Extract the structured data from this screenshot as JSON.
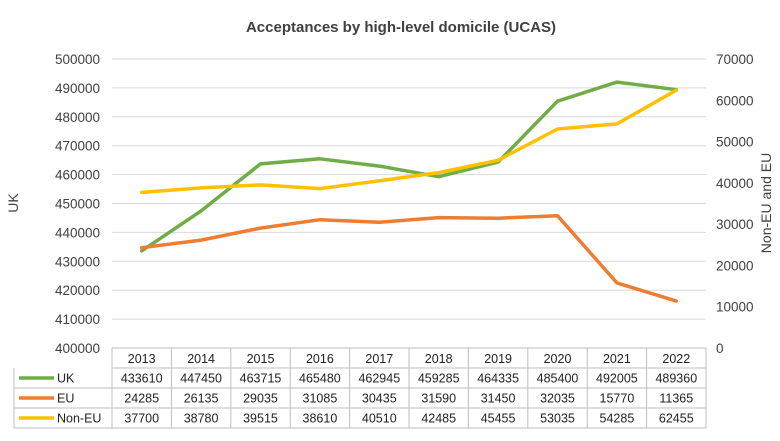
{
  "chart_data": {
    "type": "line",
    "title": "Acceptances by high-level domicile (UCAS)",
    "categories": [
      "2013",
      "2014",
      "2015",
      "2016",
      "2017",
      "2018",
      "2019",
      "2020",
      "2021",
      "2022"
    ],
    "series": [
      {
        "name": "UK",
        "axis": "left",
        "color": "#70ad47",
        "values": [
          433610,
          447450,
          463715,
          465480,
          462945,
          459285,
          464335,
          485400,
          492005,
          489360
        ]
      },
      {
        "name": "EU",
        "axis": "right",
        "color": "#ed7d31",
        "values": [
          24285,
          26135,
          29035,
          31085,
          30435,
          31590,
          31450,
          32035,
          15770,
          11365
        ]
      },
      {
        "name": "Non-EU",
        "axis": "right",
        "color": "#ffc000",
        "values": [
          37700,
          38780,
          39515,
          38610,
          40510,
          42485,
          45455,
          53035,
          54285,
          62455
        ]
      }
    ],
    "ylabel": "UK",
    "y2label": "Non-EU and EU",
    "ylim": [
      400000,
      500000
    ],
    "yticks": [
      "400000",
      "410000",
      "420000",
      "430000",
      "440000",
      "450000",
      "460000",
      "470000",
      "480000",
      "490000",
      "500000"
    ],
    "y2lim": [
      0,
      70000
    ],
    "y2ticks": [
      "0",
      "10000",
      "20000",
      "30000",
      "40000",
      "50000",
      "60000",
      "70000"
    ],
    "table": {
      "rows": [
        {
          "label": "UK",
          "cells": [
            "433610",
            "447450",
            "463715",
            "465480",
            "462945",
            "459285",
            "464335",
            "485400",
            "492005",
            "489360"
          ]
        },
        {
          "label": "EU",
          "cells": [
            "24285",
            "26135",
            "29035",
            "31085",
            "30435",
            "31590",
            "31450",
            "32035",
            "15770",
            "11365"
          ]
        },
        {
          "label": "Non-EU",
          "cells": [
            "37700",
            "38780",
            "39515",
            "38610",
            "40510",
            "42485",
            "45455",
            "53035",
            "54285",
            "62455"
          ]
        }
      ]
    },
    "grid": true
  }
}
